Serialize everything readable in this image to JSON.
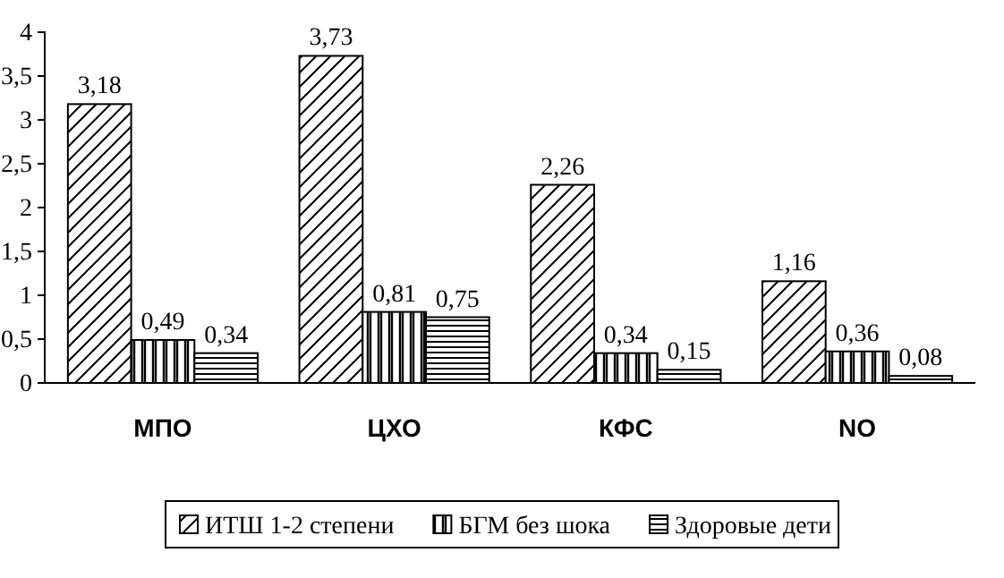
{
  "chart_data": {
    "type": "bar",
    "categories": [
      "МПО",
      "ЦХО",
      "КФС",
      "NO"
    ],
    "series": [
      {
        "name": "ИТШ 1-2 степени",
        "color": "#000000",
        "values": [
          3.18,
          3.73,
          2.26,
          1.16
        ],
        "value_labels": [
          "3,18",
          "3,73",
          "2,26",
          "1,16"
        ]
      },
      {
        "name": "БГМ без шока",
        "color": "#000000",
        "values": [
          0.49,
          0.81,
          0.34,
          0.36
        ],
        "value_labels": [
          "0,49",
          "0,81",
          "0,34",
          "0,36"
        ]
      },
      {
        "name": "Здоровые дети",
        "color": "#000000",
        "values": [
          0.34,
          0.75,
          0.15,
          0.08
        ],
        "value_labels": [
          "0,34",
          "0,75",
          "0,15",
          "0,08"
        ]
      }
    ],
    "ylim": [
      0,
      4
    ],
    "yticks": [
      0,
      {
        "value": 0.5,
        "label": "0,5"
      },
      1,
      {
        "value": 1.5,
        "label": "1,5"
      },
      2,
      {
        "value": 2.5,
        "label": "2,5"
      },
      3,
      {
        "value": 3.5,
        "label": "3,5"
      },
      4
    ],
    "grid": false,
    "legend": "bottom"
  }
}
